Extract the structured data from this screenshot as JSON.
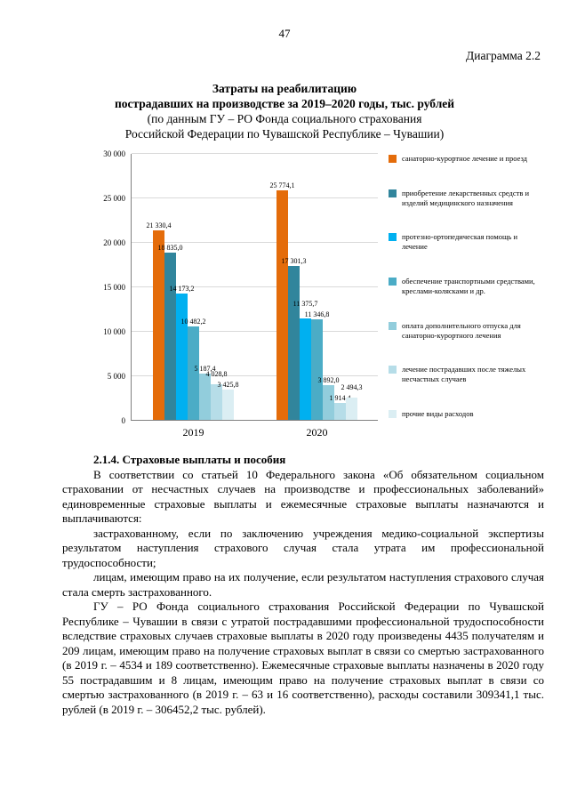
{
  "page": {
    "number": "47",
    "diagram_label": "Диаграмма 2.2"
  },
  "chart": {
    "title_lines": [
      "Затраты на реабилитацию",
      "пострадавших на производстве за 2019–2020 годы, тыс. рублей"
    ],
    "subtitle_lines": [
      "(по данным ГУ – РО Фонда социального страхования",
      "Российской Федерации по Чувашской Республике – Чувашии)"
    ]
  },
  "chart_data": {
    "type": "bar",
    "title": "Затраты на реабилитацию пострадавших на производстве за 2019–2020 годы, тыс. рублей",
    "categories": [
      "2019",
      "2020"
    ],
    "ylim": [
      0,
      30000
    ],
    "ytick_step": 5000,
    "ytick_labels": [
      "0",
      "5 000",
      "10 000",
      "15 000",
      "20 000",
      "25 000",
      "30 000"
    ],
    "grid": true,
    "legend_position": "right",
    "series": [
      {
        "name": "санаторно-курортное лечение и проезд",
        "color": "#E46C0A",
        "values": [
          21330.4,
          25774.1
        ],
        "value_labels": [
          "21 330,4",
          "25 774,1"
        ]
      },
      {
        "name": "приобретение лекарственных средств и изделий медицинского назначения",
        "color": "#31859C",
        "values": [
          18835.0,
          17301.3
        ],
        "value_labels": [
          "18 835,0",
          "17 301,3"
        ]
      },
      {
        "name": "протезно-ортопедическая помощь и лечение",
        "color": "#00B0F0",
        "values": [
          14173.2,
          11375.7
        ],
        "value_labels": [
          "14 173,2",
          "11 375,7"
        ]
      },
      {
        "name": "обеспечение транспортными средствами, креслами-колясками и др.",
        "color": "#4BACC6",
        "values": [
          10482.2,
          11346.8
        ],
        "value_labels": [
          "10 482,2",
          "11 346,8"
        ]
      },
      {
        "name": "оплата дополнительного отпуска для санаторно-курортного лечения",
        "color": "#92CDDC",
        "values": [
          5187.4,
          3892.0
        ],
        "value_labels": [
          "5 187,4",
          "3 892,0"
        ]
      },
      {
        "name": "лечение пострадавших после тяжелых несчастных случаев",
        "color": "#B6DDE8",
        "values": [
          4028.8,
          1914.4
        ],
        "value_labels": [
          "4 028,8",
          "1 914,4"
        ]
      },
      {
        "name": "прочие виды расходов",
        "color": "#DBEEF3",
        "values": [
          3425.8,
          2494.3
        ],
        "value_labels": [
          "3 425,8",
          "2 494,3"
        ]
      }
    ]
  },
  "section": {
    "heading": "2.1.4. Страховые выплаты и пособия",
    "paragraphs": [
      "В соответствии со статьей 10 Федерального закона «Об обязательном социальном страховании от несчастных случаев на производстве и профессиональных заболеваний» единовременные страховые выплаты и ежемесячные страховые выплаты назначаются и выплачиваются:",
      "застрахованному, если по заключению учреждения медико-социальной экспертизы результатом наступления страхового случая стала утрата им профессиональной трудоспособности;",
      "лицам, имеющим право на их получение, если результатом наступления страхового случая стала смерть застрахованного.",
      "ГУ – РО Фонда социального страхования Российской Федерации по Чувашской Республике – Чувашии в связи с утратой пострадавшими профессиональной трудоспособности вследствие страховых случаев страховые выплаты в 2020 году произведены 4435 получателям и 209 лицам, имеющим право на получение страховых выплат в связи со смертью застрахованного (в 2019 г. – 4534 и 189 соответственно). Ежемесячные страховые выплаты назначены в 2020 году 55 пострадавшим и 8 лицам, имеющим право на получение страховых выплат в связи со смертью застрахованного (в 2019 г. – 63 и 16 соответственно), расходы составили 309341,1 тыс. рублей (в 2019 г. – 306452,2 тыс. рублей)."
    ]
  }
}
